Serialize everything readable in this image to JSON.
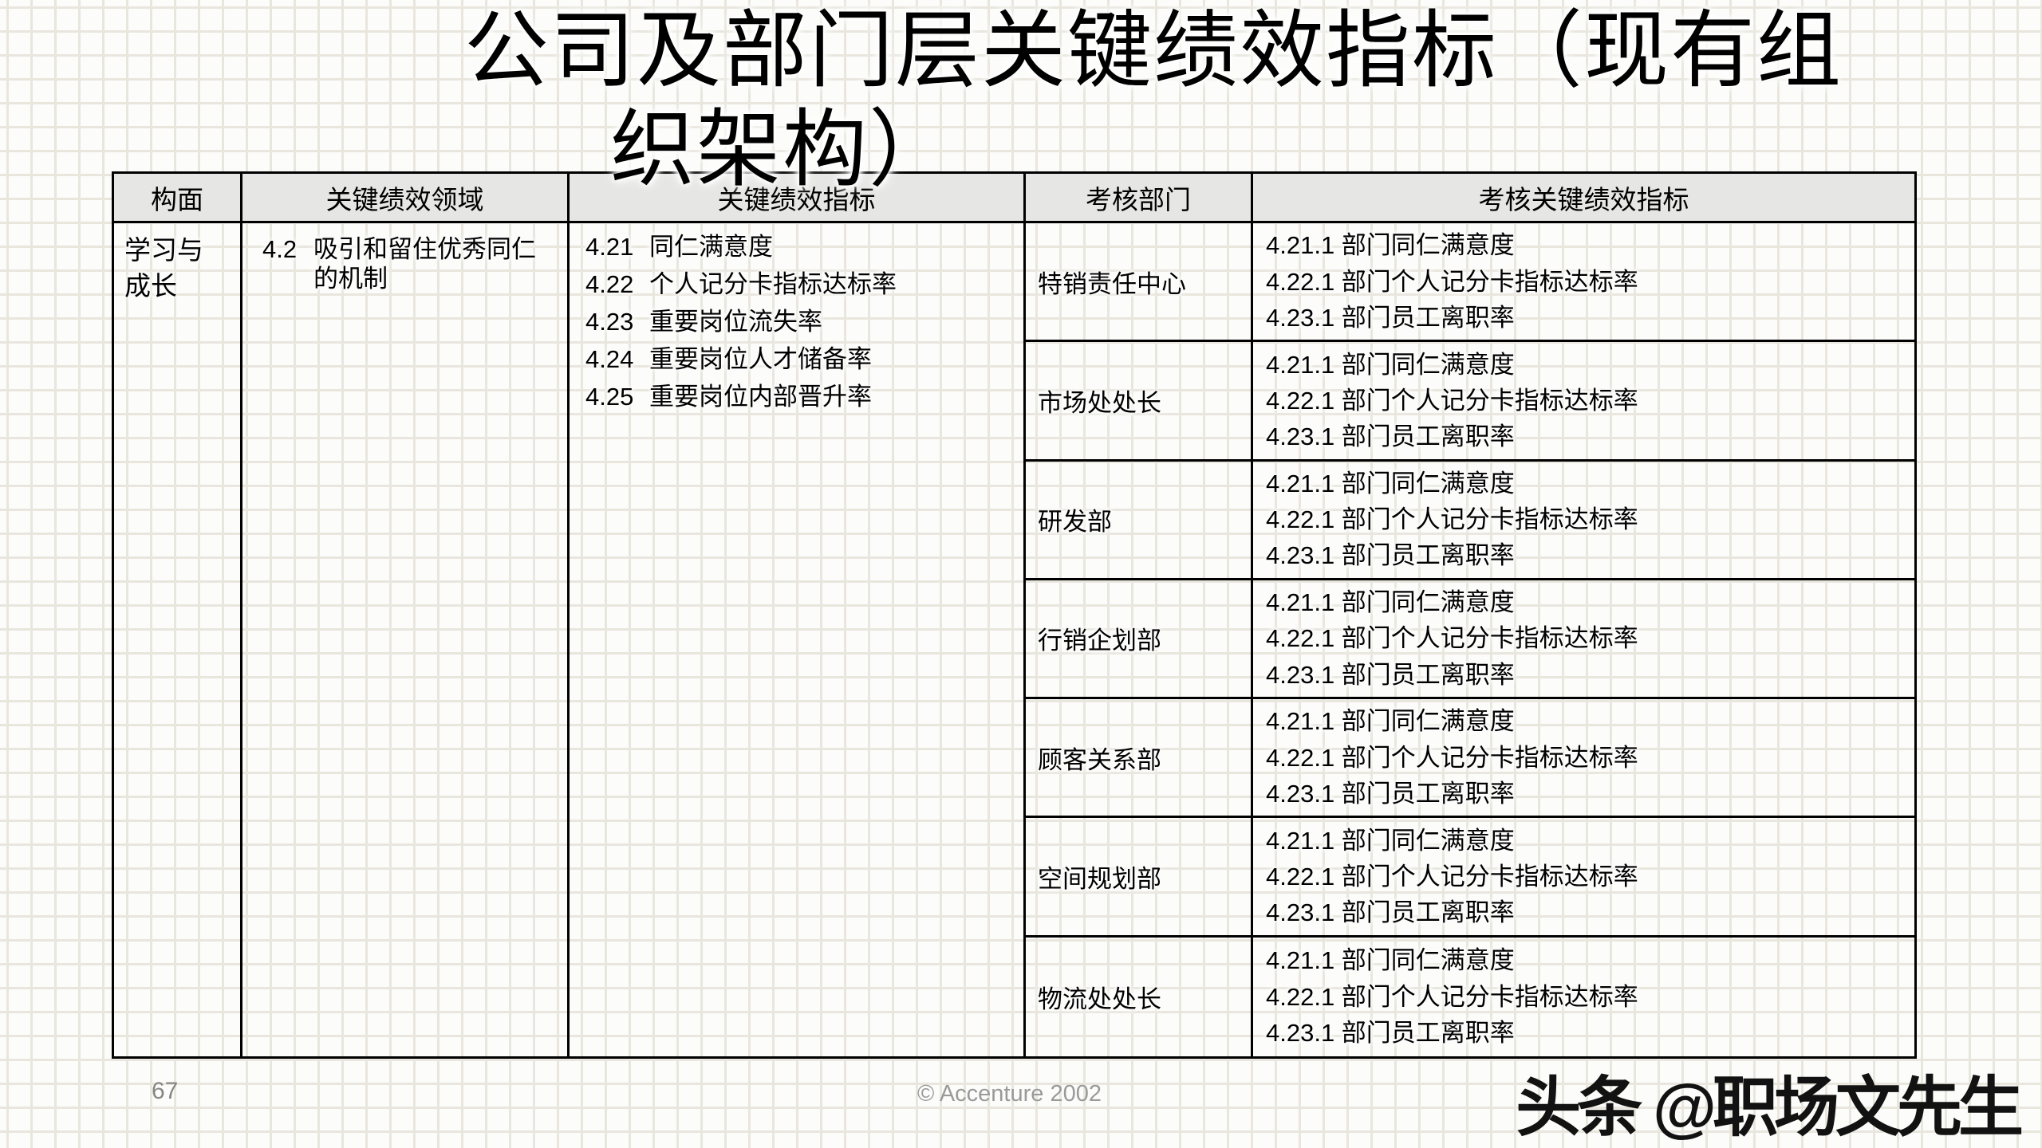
{
  "slide": {
    "title_line1": "公司及部门层关键绩效指标（现有组",
    "title_line2": "织架构）",
    "title_full": "公司及部门层关键绩效指标（现有组织架构）"
  },
  "table": {
    "headers": [
      "构面",
      "关键绩效领域",
      "关键绩效指标",
      "考核部门",
      "考核关键绩效指标"
    ],
    "dimension": {
      "line1": "学习与",
      "line2": "成长",
      "full": "学习与成长"
    },
    "kpa": {
      "num": "4.2",
      "text_line1": "吸引和留住优秀同仁",
      "text_line2": "的机制"
    },
    "kpis": [
      {
        "num": "4.21",
        "label": "同仁满意度"
      },
      {
        "num": "4.22",
        "label": "个人记分卡指标达标率"
      },
      {
        "num": "4.23",
        "label": "重要岗位流失率"
      },
      {
        "num": "4.24",
        "label": "重要岗位人才储备率"
      },
      {
        "num": "4.25",
        "label": "重要岗位内部晋升率"
      }
    ],
    "department_rows": [
      {
        "department": "特销责任中心",
        "kpis": [
          "4.21.1 部门同仁满意度",
          "4.22.1 部门个人记分卡指标达标率",
          "4.23.1 部门员工离职率"
        ]
      },
      {
        "department": "市场处处长",
        "kpis": [
          "4.21.1 部门同仁满意度",
          "4.22.1 部门个人记分卡指标达标率",
          "4.23.1 部门员工离职率"
        ]
      },
      {
        "department": "研发部",
        "kpis": [
          "4.21.1 部门同仁满意度",
          "4.22.1 部门个人记分卡指标达标率",
          "4.23.1 部门员工离职率"
        ]
      },
      {
        "department": "行销企划部",
        "kpis": [
          "4.21.1 部门同仁满意度",
          "4.22.1 部门个人记分卡指标达标率",
          "4.23.1 部门员工离职率"
        ]
      },
      {
        "department": "顾客关系部",
        "kpis": [
          "4.21.1 部门同仁满意度",
          "4.22.1 部门个人记分卡指标达标率",
          "4.23.1 部门员工离职率"
        ]
      },
      {
        "department": "空间规划部",
        "kpis": [
          "4.21.1 部门同仁满意度",
          "4.22.1 部门个人记分卡指标达标率",
          "4.23.1 部门员工离职率"
        ]
      },
      {
        "department": "物流处处长",
        "kpis": [
          "4.21.1 部门同仁满意度",
          "4.22.1 部门个人记分卡指标达标率",
          "4.23.1 部门员工离职率"
        ]
      }
    ]
  },
  "footer": {
    "page_number": "67",
    "copyright": "© Accenture 2002",
    "watermark": "头条 @职场文先生"
  }
}
